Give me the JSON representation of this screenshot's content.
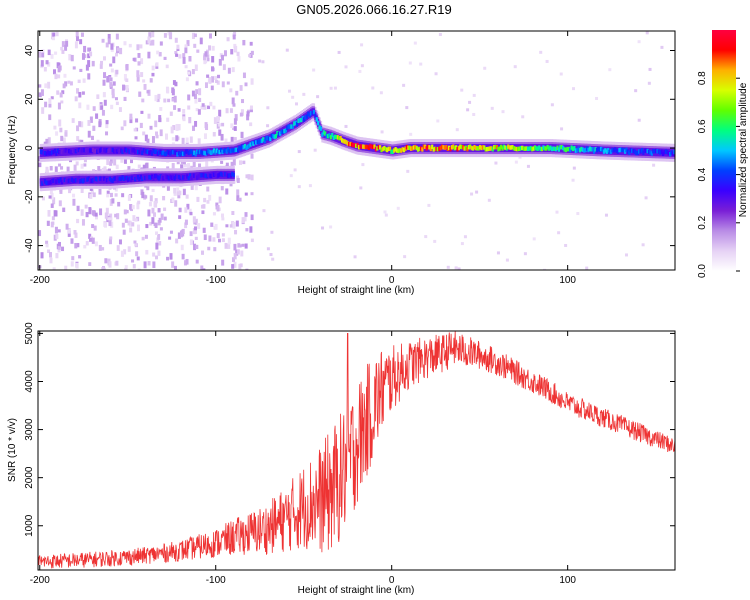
{
  "figure_title": "GN05.2026.066.16.27.R19",
  "chart_data": [
    {
      "type": "heatmap",
      "title": "GN05.2026.066.16.27.R19",
      "xlabel": "Height of straight line (km)",
      "ylabel": "Frequency (Hz)",
      "xlim": [
        -201,
        161
      ],
      "ylim": [
        -50,
        48
      ],
      "x_ticks": [
        -200,
        -100,
        0,
        100
      ],
      "x_tick_labels": [
        "-200",
        "-100",
        "0",
        "100"
      ],
      "y_ticks": [
        40,
        20,
        0,
        -20,
        -40
      ],
      "y_tick_labels": [
        "40",
        "20",
        "0",
        "-20",
        "-40"
      ],
      "colorbar": {
        "label": "Normalized spectral amplitude",
        "range": [
          0,
          1
        ],
        "ticks": [
          0.0,
          0.2,
          0.4,
          0.6,
          0.8
        ],
        "tick_labels": [
          "0.0",
          "0.2",
          "0.4",
          "0.6",
          "0.8"
        ],
        "colormap": [
          "#ffffff",
          "#e6d2f5",
          "#b98ce6",
          "#7a1fd6",
          "#3a00ff",
          "#0040ff",
          "#00c8ff",
          "#00ff80",
          "#60ff00",
          "#d8ff00",
          "#ffb000",
          "#ff0000",
          "#ff0040"
        ]
      },
      "ridges": [
        {
          "name": "lower branch",
          "x": [
            -200,
            -180,
            -160,
            -140,
            -120,
            -100,
            -90
          ],
          "y": [
            -14,
            -13,
            -13,
            -12,
            -12,
            -11,
            -11
          ],
          "amplitude": 0.35
        },
        {
          "name": "main branch",
          "x": [
            -200,
            -170,
            -150,
            -130,
            -110,
            -90,
            -70,
            -55,
            -45,
            -40,
            -35,
            -28,
            -20,
            -10,
            0,
            10,
            30,
            60,
            90,
            120,
            161
          ],
          "y": [
            -2,
            -1,
            -1,
            -2,
            -2,
            -1,
            4,
            10,
            15,
            6,
            5,
            3,
            1,
            0,
            -1,
            0,
            0,
            0,
            0,
            -1,
            -2
          ],
          "amplitude": [
            0.35,
            0.3,
            0.35,
            0.4,
            0.45,
            0.45,
            0.5,
            0.5,
            0.45,
            0.5,
            0.6,
            0.8,
            0.9,
            0.9,
            0.7,
            0.85,
            0.85,
            0.75,
            0.6,
            0.45,
            0.4
          ]
        }
      ]
    },
    {
      "type": "line",
      "xlabel": "Height of straight line (km)",
      "ylabel": "SNR (10 * v/v)",
      "xlim": [
        -201,
        161
      ],
      "ylim": [
        80,
        5050
      ],
      "x_ticks": [
        -200,
        -100,
        0,
        100
      ],
      "x_tick_labels": [
        "-200",
        "-100",
        "0",
        "100"
      ],
      "y_ticks": [
        1000,
        2000,
        3000,
        4000,
        5000
      ],
      "y_tick_labels": [
        "1000",
        "2000",
        "3000",
        "4000",
        "5000"
      ],
      "series": [
        {
          "name": "SNR",
          "color": "#ee3333",
          "x": [
            -200,
            -180,
            -160,
            -140,
            -120,
            -100,
            -90,
            -80,
            -70,
            -60,
            -50,
            -45,
            -40,
            -35,
            -30,
            -25,
            -20,
            -15,
            -10,
            -5,
            0,
            5,
            10,
            20,
            30,
            35,
            40,
            50,
            60,
            70,
            80,
            90,
            100,
            110,
            120,
            130,
            140,
            150,
            161
          ],
          "y": [
            250,
            280,
            320,
            380,
            480,
            640,
            760,
            850,
            950,
            1150,
            1400,
            1500,
            1550,
            1700,
            1950,
            2300,
            2700,
            3100,
            3500,
            3850,
            4050,
            4200,
            4350,
            4500,
            4600,
            4700,
            4650,
            4550,
            4400,
            4200,
            4000,
            3800,
            3550,
            3400,
            3250,
            3100,
            2950,
            2800,
            2650
          ],
          "spread": [
            150,
            160,
            170,
            180,
            220,
            300,
            380,
            450,
            550,
            700,
            900,
            1000,
            1150,
            1300,
            1350,
            1350,
            1300,
            1200,
            1100,
            900,
            700,
            600,
            500,
            450,
            400,
            380,
            350,
            300,
            280,
            260,
            250,
            240,
            230,
            220,
            210,
            200,
            200,
            190,
            180
          ],
          "spike": {
            "x": -25,
            "y": 5000
          }
        }
      ]
    }
  ]
}
